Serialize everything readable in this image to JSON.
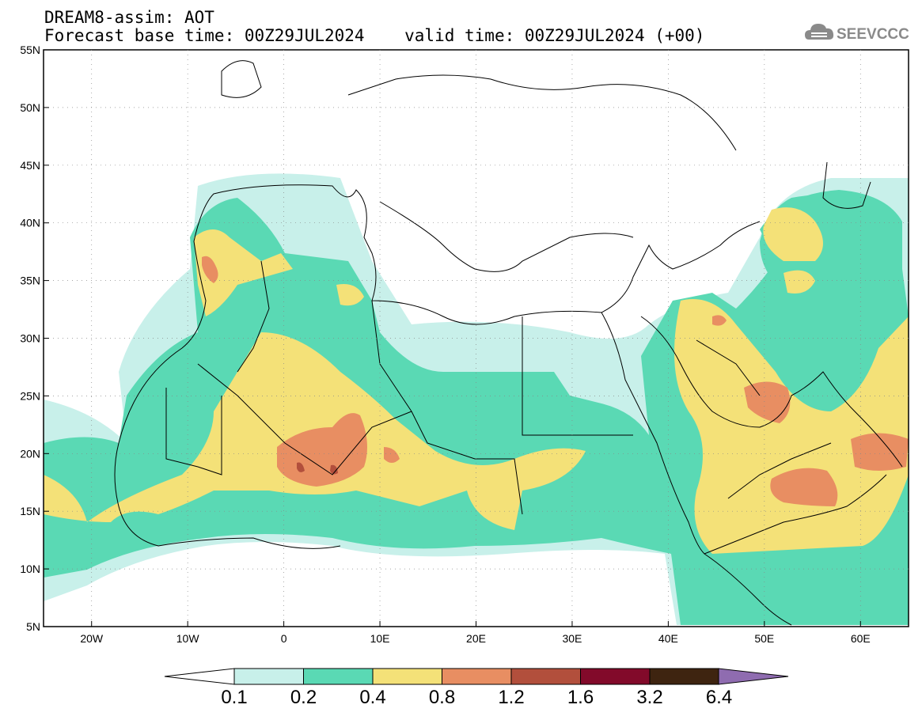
{
  "header": {
    "line1": "DREAM8-assim: AOT",
    "line2": "Forecast base time: 00Z29JUL2024    valid time: 00Z29JUL2024 (+00)"
  },
  "logo": {
    "icon": "cloud-icon",
    "text": "SEEVCCC"
  },
  "map": {
    "lon_range": [
      -25,
      65
    ],
    "lat_range": [
      5,
      55
    ],
    "x_ticks": [
      "20W",
      "10W",
      "0",
      "10E",
      "20E",
      "30E",
      "40E",
      "50E",
      "60E"
    ],
    "y_ticks": [
      "5N",
      "10N",
      "15N",
      "20N",
      "25N",
      "30N",
      "35N",
      "40N",
      "45N",
      "50N",
      "55N"
    ]
  },
  "colorbar": {
    "labels": [
      "0.1",
      "0.2",
      "0.4",
      "0.8",
      "1.2",
      "1.6",
      "3.2",
      "6.4"
    ],
    "colors": [
      "#c8f0ea",
      "#5ad9b4",
      "#f4e178",
      "#e88e62",
      "#b24f3c",
      "#820a2a",
      "#3e2410",
      "#8f6cb0"
    ]
  }
}
